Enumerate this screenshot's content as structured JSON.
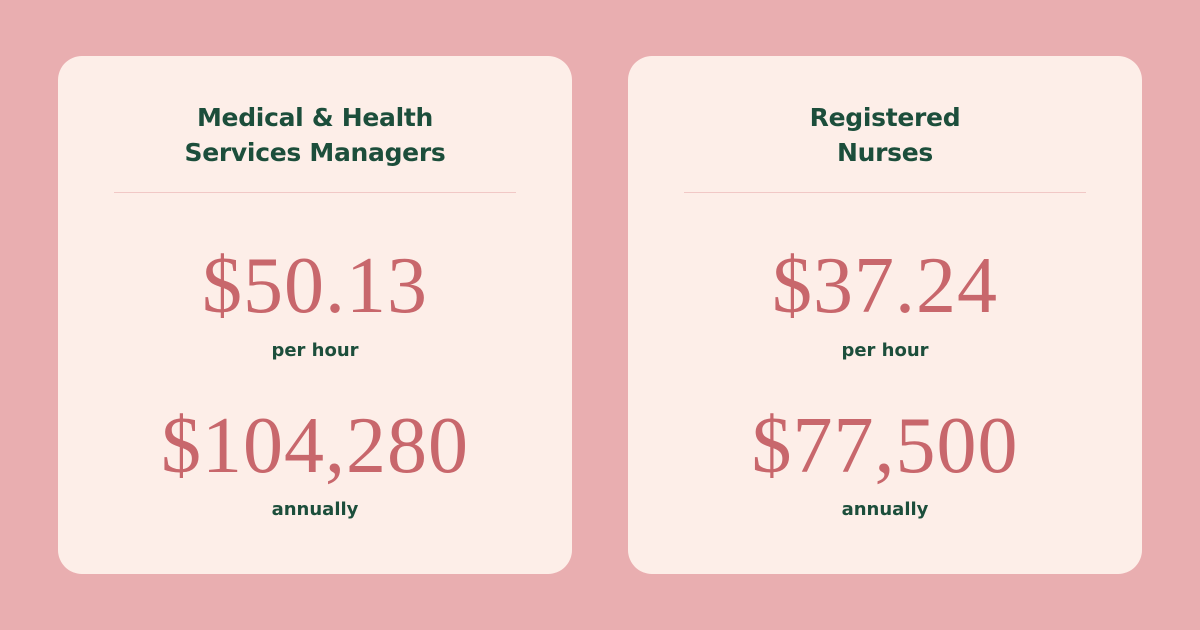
{
  "cards": [
    {
      "title_lines": [
        "Medical & Health",
        "Services Managers"
      ],
      "hourly_amount": "$50.13",
      "hourly_label": "per hour",
      "annual_amount": "$104,280",
      "annual_label": "annually"
    },
    {
      "title_lines": [
        "Registered",
        "Nurses"
      ],
      "hourly_amount": "$37.24",
      "hourly_label": "per hour",
      "annual_amount": "$77,500",
      "annual_label": "annually"
    }
  ],
  "colors": {
    "background": "#e9aeb0",
    "card": "#fdeee8",
    "title": "#1c4e3b",
    "amount": "#c8676c",
    "divider": "#f1c8c6"
  }
}
